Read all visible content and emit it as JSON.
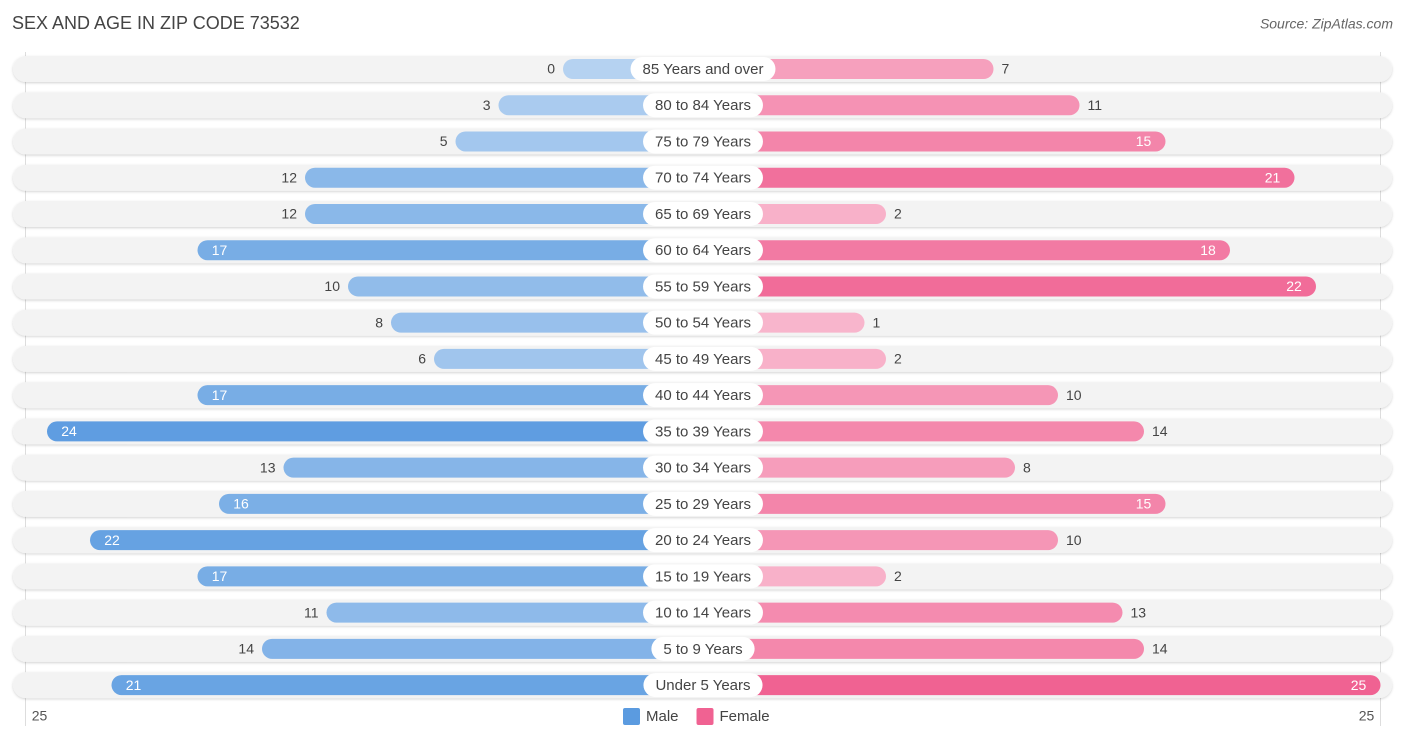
{
  "chart_data": {
    "type": "bar",
    "title": "SEX AND AGE IN ZIP CODE 73532",
    "source": "Source: ZipAtlas.com",
    "categories": [
      "85 Years and over",
      "80 to 84 Years",
      "75 to 79 Years",
      "70 to 74 Years",
      "65 to 69 Years",
      "60 to 64 Years",
      "55 to 59 Years",
      "50 to 54 Years",
      "45 to 49 Years",
      "40 to 44 Years",
      "35 to 39 Years",
      "30 to 34 Years",
      "25 to 29 Years",
      "20 to 24 Years",
      "15 to 19 Years",
      "10 to 14 Years",
      "5 to 9 Years",
      "Under 5 Years"
    ],
    "series": [
      {
        "name": "Male",
        "color": "#5b9be0",
        "values": [
          0,
          3,
          5,
          12,
          12,
          17,
          10,
          8,
          6,
          17,
          24,
          13,
          16,
          22,
          17,
          11,
          14,
          21
        ]
      },
      {
        "name": "Female",
        "color": "#f06292",
        "values": [
          7,
          11,
          15,
          21,
          2,
          18,
          22,
          1,
          2,
          10,
          14,
          8,
          15,
          10,
          2,
          13,
          14,
          25
        ]
      }
    ],
    "xlim": [
      0,
      25
    ],
    "xticks": [
      25
    ]
  }
}
